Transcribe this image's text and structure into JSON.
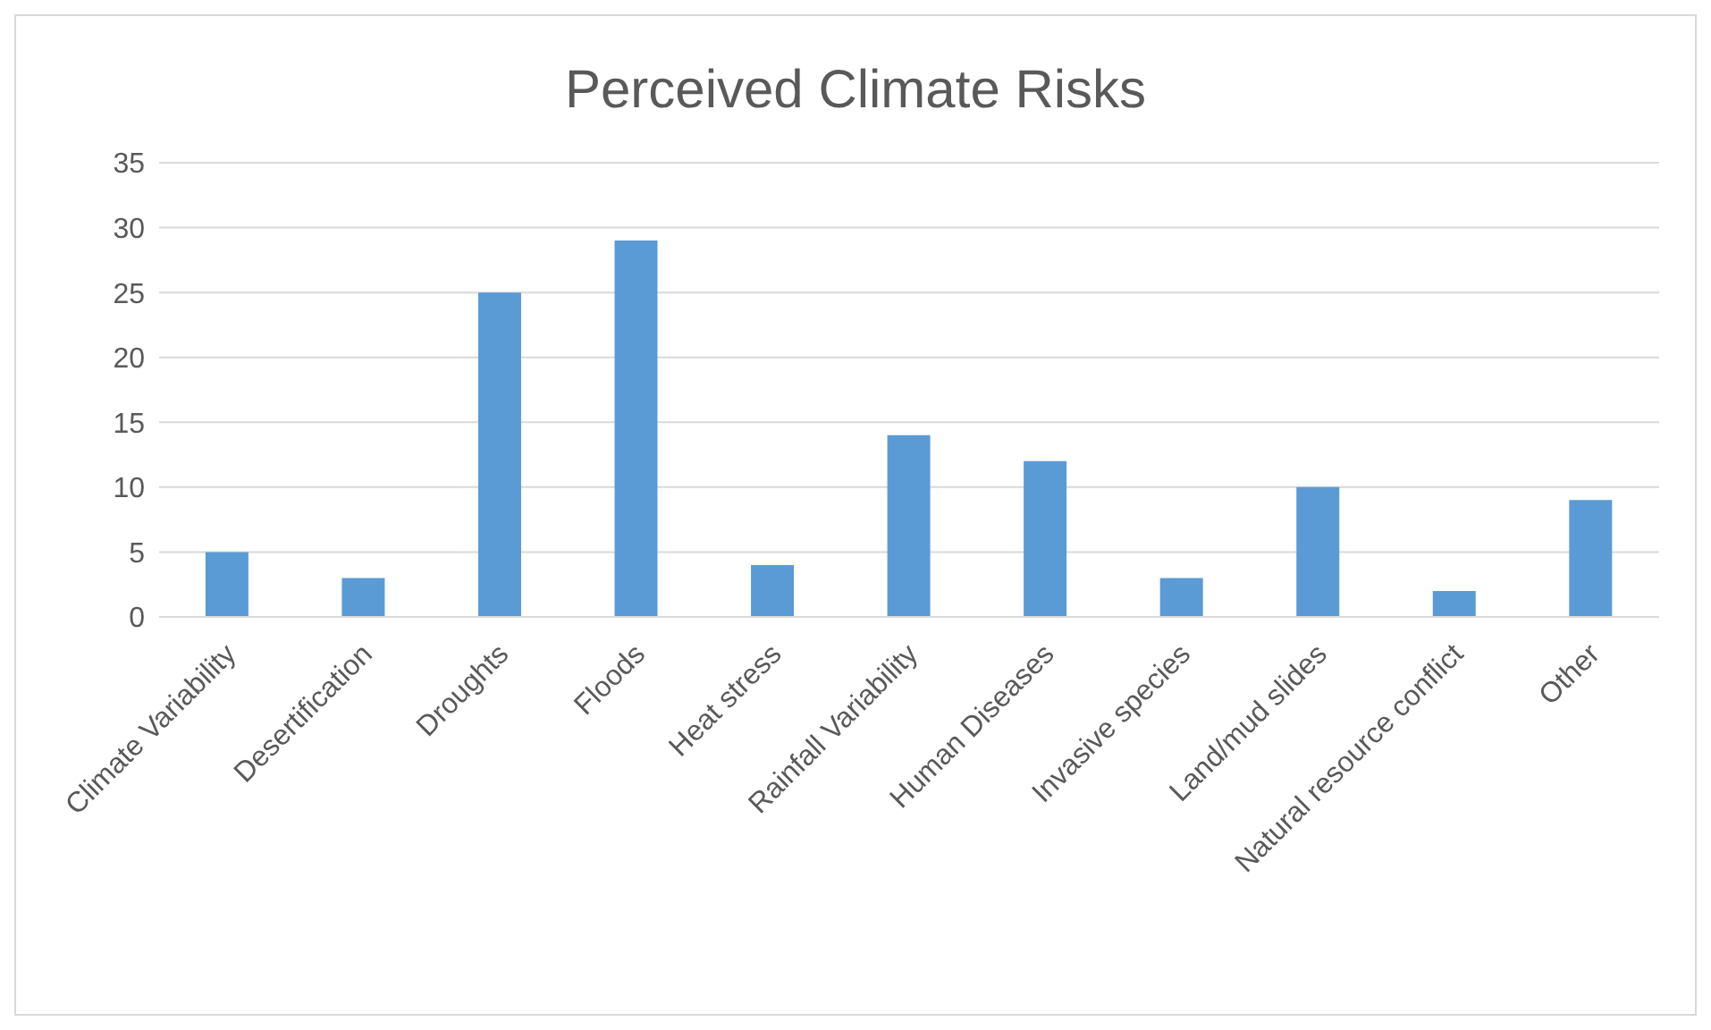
{
  "chart_data": {
    "type": "bar",
    "title": "Perceived Climate Risks",
    "categories": [
      "Climate Variability",
      "Desertification",
      "Droughts",
      "Floods",
      "Heat stress",
      "Rainfall Variability",
      "Human Diseases",
      "Invasive species",
      "Land/mud slides",
      "Natural resource conflict",
      "Other"
    ],
    "values": [
      5,
      3,
      25,
      29,
      4,
      14,
      12,
      3,
      10,
      2,
      9
    ],
    "color": "#5b9bd5",
    "ylim": [
      0,
      35
    ],
    "yticks": [
      0,
      5,
      10,
      15,
      20,
      25,
      30,
      35
    ],
    "grid": "y",
    "legend": false
  }
}
